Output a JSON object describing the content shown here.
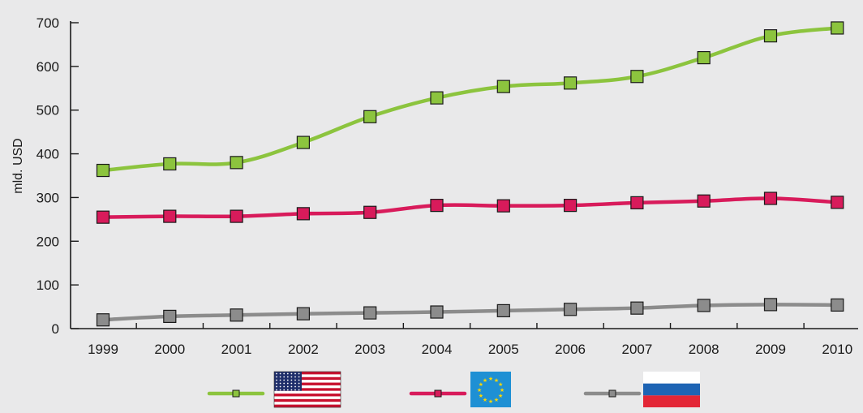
{
  "chart_data": {
    "type": "line",
    "title": "",
    "xlabel": "",
    "ylabel": "mld. USD",
    "ylim": [
      0,
      700
    ],
    "yticks": [
      0,
      100,
      200,
      300,
      400,
      500,
      600,
      700
    ],
    "categories": [
      "1999",
      "2000",
      "2001",
      "2002",
      "2003",
      "2004",
      "2005",
      "2006",
      "2007",
      "2008",
      "2009",
      "2010"
    ],
    "grid": false,
    "legend_position": "bottom",
    "series": [
      {
        "legend_icon": "us-flag-icon",
        "color": "#8cc43e",
        "values": [
          362,
          377,
          380,
          426,
          485,
          528,
          554,
          562,
          577,
          620,
          670,
          688
        ]
      },
      {
        "legend_icon": "eu-flag-icon",
        "color": "#d81b5b",
        "values": [
          255,
          257,
          257,
          263,
          266,
          282,
          281,
          282,
          288,
          292,
          298,
          289
        ]
      },
      {
        "legend_icon": "russia-flag-icon",
        "color": "#8c8c8c",
        "values": [
          20,
          28,
          31,
          34,
          36,
          38,
          41,
          44,
          47,
          53,
          55,
          54
        ]
      }
    ]
  }
}
